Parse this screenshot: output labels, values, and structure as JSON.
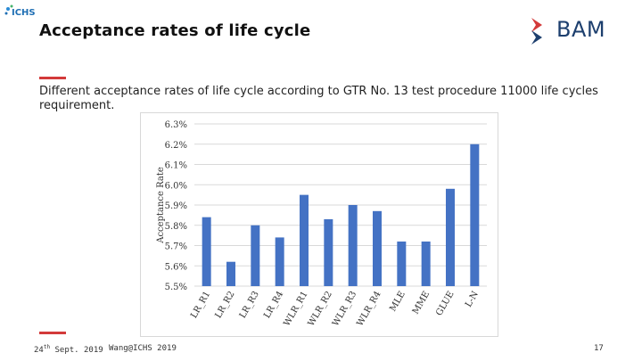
{
  "header": {
    "title": "Acceptance rates of life cycle",
    "ichs_logo": "ICHS",
    "bam_logo": "BAM"
  },
  "subtitle": "Different acceptance rates of life cycle according to GTR No. 13 test procedure 11000 life cycles requirement.",
  "footer": {
    "date_day": "24",
    "date_suffix": "th",
    "date_rest": " Sept. 2019",
    "author": "Wang@ICHS 2019",
    "page": "17"
  },
  "colors": {
    "bar": "#4472c4",
    "accent": "#d33a3a",
    "bam_red": "#d33a3a",
    "bam_blue": "#1d3f6e"
  },
  "chart_data": {
    "type": "bar",
    "title": "",
    "xlabel": "",
    "ylabel": "Acceptance Rate",
    "categories": [
      "LR_R1",
      "LR_R2",
      "LR_R3",
      "LR_R4",
      "WLR_R1",
      "WLR_R2",
      "WLR_R3",
      "WLR_R4",
      "MLE",
      "MME",
      "GLUE",
      "L-N"
    ],
    "values": [
      5.84,
      5.62,
      5.8,
      5.74,
      5.95,
      5.83,
      5.9,
      5.87,
      5.72,
      5.72,
      5.98,
      6.2
    ],
    "ylim": [
      5.5,
      6.3
    ],
    "yticks": [
      "5.5%",
      "5.6%",
      "5.7%",
      "5.8%",
      "5.9%",
      "6.0%",
      "6.1%",
      "6.2%",
      "6.3%"
    ],
    "grid": true
  }
}
